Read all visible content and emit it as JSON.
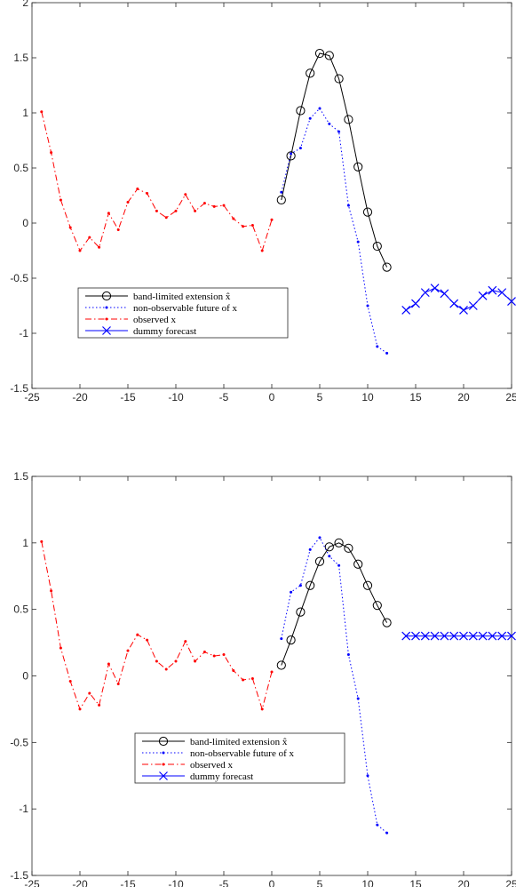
{
  "chart_data": [
    {
      "type": "line",
      "title": "",
      "xlabel": "",
      "ylabel": "",
      "xlim": [
        -25,
        25
      ],
      "ylim": [
        -1.5,
        2
      ],
      "xticks": [
        -25,
        -20,
        -15,
        -10,
        -5,
        0,
        5,
        10,
        15,
        20,
        25
      ],
      "yticks": [
        -1.5,
        -1,
        -0.5,
        0,
        0.5,
        1,
        1.5,
        2
      ],
      "xtick_labels": [
        "-25",
        "-20",
        "-15",
        "-10",
        "-5",
        "0",
        "5",
        "10",
        "15",
        "20",
        "25"
      ],
      "ytick_labels": [
        "-1.5",
        "-1",
        "-0.5",
        "0",
        "0.5",
        "1",
        "1.5",
        "2"
      ],
      "grid": false,
      "legend_position": "bottom-left",
      "series": [
        {
          "name": "band-limited extension x̂",
          "style": "solid-circle",
          "color": "#000000",
          "x": [
            1,
            2,
            3,
            4,
            5,
            6,
            7,
            8,
            9,
            10,
            11,
            12
          ],
          "y": [
            0.21,
            0.61,
            1.02,
            1.36,
            1.54,
            1.52,
            1.31,
            0.94,
            0.51,
            0.1,
            -0.21,
            -0.4
          ]
        },
        {
          "name": "non-observable future of x",
          "style": "dotted-dot",
          "color": "#0000ff",
          "x": [
            1,
            2,
            3,
            4,
            5,
            6,
            7,
            8,
            9,
            10,
            11,
            12
          ],
          "y": [
            0.28,
            0.63,
            0.68,
            0.95,
            1.04,
            0.9,
            0.83,
            0.16,
            -0.17,
            -0.75,
            -1.12,
            -1.18
          ]
        },
        {
          "name": "observed x",
          "style": "dashdot-dot",
          "color": "#ff0000",
          "x": [
            -24,
            -23,
            -22,
            -21,
            -20,
            -19,
            -18,
            -17,
            -16,
            -15,
            -14,
            -13,
            -12,
            -11,
            -10,
            -9,
            -8,
            -7,
            -6,
            -5,
            -4,
            -3,
            -2,
            -1,
            0
          ],
          "y": [
            1.01,
            0.64,
            0.21,
            -0.04,
            -0.25,
            -0.13,
            -0.22,
            0.09,
            -0.06,
            0.19,
            0.31,
            0.27,
            0.11,
            0.05,
            0.11,
            0.26,
            0.11,
            0.18,
            0.15,
            0.16,
            0.04,
            -0.03,
            -0.02,
            -0.25,
            0.03
          ]
        },
        {
          "name": "dummy forecast",
          "style": "solid-x",
          "color": "#0000ff",
          "x": [
            14,
            15,
            16,
            17,
            18,
            19,
            20,
            21,
            22,
            23,
            24,
            25
          ],
          "y": [
            -0.79,
            -0.73,
            -0.63,
            -0.59,
            -0.64,
            -0.73,
            -0.79,
            -0.75,
            -0.66,
            -0.61,
            -0.63,
            -0.71
          ]
        }
      ]
    },
    {
      "type": "line",
      "title": "",
      "xlabel": "",
      "ylabel": "",
      "xlim": [
        -25,
        25
      ],
      "ylim": [
        -1.5,
        1.5
      ],
      "xticks": [
        -25,
        -20,
        -15,
        -10,
        -5,
        0,
        5,
        10,
        15,
        20,
        25
      ],
      "yticks": [
        -1.5,
        -1,
        -0.5,
        0,
        0.5,
        1,
        1.5
      ],
      "xtick_labels": [
        "-25",
        "-20",
        "-15",
        "-10",
        "-5",
        "0",
        "5",
        "10",
        "15",
        "20",
        "25"
      ],
      "ytick_labels": [
        "-1.5",
        "-1",
        "-0.5",
        "0",
        "0.5",
        "1",
        "1.5"
      ],
      "grid": false,
      "legend_position": "bottom-center",
      "series": [
        {
          "name": "band-limited extension x̂",
          "style": "solid-circle",
          "color": "#000000",
          "x": [
            1,
            2,
            3,
            4,
            5,
            6,
            7,
            8,
            9,
            10,
            11,
            12
          ],
          "y": [
            0.08,
            0.27,
            0.48,
            0.68,
            0.86,
            0.97,
            1.0,
            0.96,
            0.84,
            0.68,
            0.53,
            0.4
          ]
        },
        {
          "name": "non-observable future of x",
          "style": "dotted-dot",
          "color": "#0000ff",
          "x": [
            1,
            2,
            3,
            4,
            5,
            6,
            7,
            8,
            9,
            10,
            11,
            12
          ],
          "y": [
            0.28,
            0.63,
            0.68,
            0.95,
            1.04,
            0.9,
            0.83,
            0.16,
            -0.17,
            -0.75,
            -1.12,
            -1.18
          ]
        },
        {
          "name": "observed x",
          "style": "dashdot-dot",
          "color": "#ff0000",
          "x": [
            -24,
            -23,
            -22,
            -21,
            -20,
            -19,
            -18,
            -17,
            -16,
            -15,
            -14,
            -13,
            -12,
            -11,
            -10,
            -9,
            -8,
            -7,
            -6,
            -5,
            -4,
            -3,
            -2,
            -1,
            0
          ],
          "y": [
            1.01,
            0.64,
            0.21,
            -0.04,
            -0.25,
            -0.13,
            -0.22,
            0.09,
            -0.06,
            0.19,
            0.31,
            0.27,
            0.11,
            0.05,
            0.11,
            0.26,
            0.11,
            0.18,
            0.15,
            0.16,
            0.04,
            -0.03,
            -0.02,
            -0.25,
            0.03
          ]
        },
        {
          "name": "dummy forecast",
          "style": "solid-x",
          "color": "#0000ff",
          "x": [
            14,
            15,
            16,
            17,
            18,
            19,
            20,
            21,
            22,
            23,
            24,
            25
          ],
          "y": [
            0.3,
            0.3,
            0.3,
            0.3,
            0.3,
            0.3,
            0.3,
            0.3,
            0.3,
            0.3,
            0.3,
            0.3
          ]
        }
      ]
    }
  ]
}
